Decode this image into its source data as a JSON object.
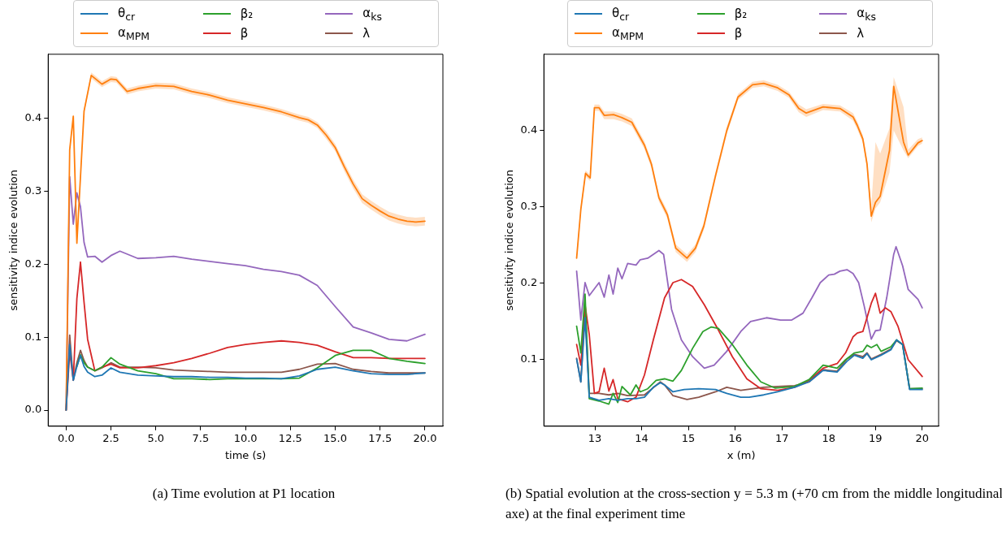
{
  "chart_data": [
    {
      "type": "line",
      "xlabel": "time (s)",
      "ylabel": "sensitivity indice evolution",
      "legend": "top",
      "annotations": [
        "(a) Time evolution at P1 location"
      ],
      "xlim": [
        -1.0,
        21.0
      ],
      "ylim": [
        -0.022,
        0.488
      ],
      "xticks": [
        {
          "value": 0,
          "label": "0.0"
        },
        2.5,
        {
          "value": 5,
          "label": "5.0"
        },
        7.5,
        {
          "value": 10,
          "label": "10.0"
        },
        12.5,
        {
          "value": 15,
          "label": "15.0"
        },
        17.5,
        {
          "value": 20,
          "label": "20.0"
        }
      ],
      "yticks": [
        {
          "value": 0,
          "label": "0.0"
        },
        0.1,
        0.2,
        0.3,
        0.4
      ],
      "x": [
        0,
        0.2,
        0.4,
        0.6,
        0.8,
        1.0,
        1.2,
        1.6,
        2,
        2.5,
        3,
        4,
        5,
        6,
        7,
        8,
        9,
        10,
        11,
        12,
        13,
        14,
        15,
        16,
        17,
        18,
        19,
        20
      ],
      "series": [
        {
          "name": "θ$_{cr}$",
          "color": "#1f77b4",
          "values": [
            0,
            0.09,
            0.041,
            0.06,
            0.075,
            0.06,
            0.052,
            0.046,
            0.048,
            0.058,
            0.052,
            0.048,
            0.047,
            0.046,
            0.046,
            0.045,
            0.045,
            0.044,
            0.044,
            0.043,
            0.047,
            0.056,
            0.059,
            0.054,
            0.05,
            0.049,
            0.049,
            0.051
          ]
        },
        {
          "name": "α$_{MPM}$",
          "color": "#ff7f0e",
          "x": [
            0,
            0.2,
            0.4,
            0.6,
            1.0,
            1.4,
            2,
            2.5,
            2.8,
            3.4,
            4,
            5,
            6,
            7,
            8,
            9,
            10,
            11,
            12,
            13,
            13.5,
            14,
            14.5,
            15,
            15.5,
            16,
            16.5,
            17,
            17.5,
            18,
            18.5,
            19,
            19.5,
            20
          ],
          "values": [
            0,
            0.357,
            0.403,
            0.229,
            0.41,
            0.459,
            0.447,
            0.454,
            0.453,
            0.437,
            0.441,
            0.445,
            0.444,
            0.437,
            0.432,
            0.425,
            0.42,
            0.415,
            0.409,
            0.401,
            0.398,
            0.391,
            0.377,
            0.36,
            0.334,
            0.31,
            0.29,
            0.281,
            0.273,
            0.266,
            0.262,
            0.259,
            0.258,
            0.259
          ],
          "lower": [
            0,
            0.353,
            0.399,
            0.225,
            0.406,
            0.455,
            0.443,
            0.45,
            0.449,
            0.433,
            0.437,
            0.441,
            0.44,
            0.433,
            0.428,
            0.421,
            0.416,
            0.411,
            0.405,
            0.397,
            0.394,
            0.387,
            0.372,
            0.355,
            0.328,
            0.304,
            0.284,
            0.275,
            0.267,
            0.26,
            0.256,
            0.253,
            0.252,
            0.253
          ],
          "upper": [
            0,
            0.361,
            0.407,
            0.233,
            0.414,
            0.463,
            0.451,
            0.458,
            0.457,
            0.441,
            0.445,
            0.449,
            0.448,
            0.441,
            0.436,
            0.429,
            0.424,
            0.419,
            0.413,
            0.405,
            0.402,
            0.395,
            0.382,
            0.365,
            0.34,
            0.316,
            0.296,
            0.287,
            0.279,
            0.272,
            0.268,
            0.265,
            0.264,
            0.265
          ]
        },
        {
          "name": "β₂",
          "color": "#2ca02c",
          "values": [
            null,
            null,
            null,
            0.06,
            0.076,
            0.065,
            0.059,
            0.054,
            0.059,
            0.072,
            0.063,
            0.054,
            0.05,
            0.043,
            0.043,
            0.042,
            0.043,
            0.043,
            0.043,
            0.043,
            0.044,
            0.058,
            0.075,
            0.082,
            0.082,
            0.071,
            0.067,
            0.064
          ]
        },
        {
          "name": "β",
          "color": "#d62728",
          "values": [
            0,
            0.08,
            0.041,
            0.153,
            0.203,
            0.148,
            0.097,
            0.054,
            0.059,
            0.063,
            0.058,
            0.058,
            0.061,
            0.065,
            0.071,
            0.078,
            0.086,
            0.09,
            0.093,
            0.095,
            0.093,
            0.089,
            0.08,
            0.072,
            0.072,
            0.071,
            0.071,
            0.071
          ]
        },
        {
          "name": "α$_{ks}$",
          "color": "#9467bd",
          "values": [
            0,
            0.32,
            0.255,
            0.298,
            0.279,
            0.23,
            0.21,
            0.211,
            0.203,
            0.212,
            0.218,
            0.208,
            0.209,
            0.211,
            0.207,
            0.204,
            0.201,
            0.198,
            0.193,
            0.19,
            0.185,
            0.171,
            0.142,
            0.114,
            0.106,
            0.097,
            0.095,
            0.104
          ]
        },
        {
          "name": "λ",
          "color": "#8c564b",
          "values": [
            0,
            0.103,
            0.041,
            0.065,
            0.082,
            0.068,
            0.059,
            0.054,
            0.058,
            0.065,
            0.059,
            0.059,
            0.058,
            0.055,
            0.054,
            0.053,
            0.052,
            0.052,
            0.052,
            0.052,
            0.056,
            0.063,
            0.064,
            0.056,
            0.053,
            0.051,
            0.051,
            0.051
          ]
        }
      ]
    },
    {
      "type": "line",
      "xlabel": "x (m)",
      "ylabel": "sensitivity indice evolution",
      "legend": "top",
      "annotations": [
        "(b) Spatial evolution at the cross-section y = 5.3 m (+70 cm from the middle longitudinal axe) at the final experiment time"
      ],
      "xlim": [
        11.91,
        20.35
      ],
      "ylim": [
        0.013,
        0.5
      ],
      "xticks": [
        13,
        14,
        15,
        16,
        17,
        18,
        19,
        20
      ],
      "yticks": [
        0.1,
        0.2,
        0.3,
        0.4
      ],
      "series": [
        {
          "name": "θ$_{cr}$",
          "color": "#1f77b4",
          "x": [
            12.61,
            12.7,
            12.79,
            12.88,
            13.09,
            13.3,
            13.49,
            13.7,
            13.88,
            14.06,
            14.25,
            14.4,
            14.49,
            14.67,
            14.91,
            15.22,
            15.58,
            15.82,
            16.12,
            16.3,
            16.61,
            16.91,
            17.27,
            17.58,
            17.88,
            18.18,
            18.39,
            18.55,
            18.73,
            18.82,
            18.91,
            19.12,
            19.33,
            19.45,
            19.58,
            19.73,
            20.0
          ],
          "values": [
            0.101,
            0.071,
            0.155,
            0.051,
            0.047,
            0.049,
            0.047,
            0.049,
            0.049,
            0.051,
            0.064,
            0.07,
            0.067,
            0.058,
            0.061,
            0.062,
            0.061,
            0.056,
            0.051,
            0.051,
            0.054,
            0.058,
            0.064,
            0.071,
            0.086,
            0.084,
            0.098,
            0.106,
            0.102,
            0.108,
            0.1,
            0.106,
            0.113,
            0.126,
            0.12,
            0.061,
            0.061
          ]
        },
        {
          "name": "α$_{MPM}$",
          "color": "#ff7f0e",
          "x": [
            12.61,
            12.7,
            12.8,
            12.9,
            12.99,
            13.09,
            13.2,
            13.4,
            13.58,
            13.79,
            14.06,
            14.21,
            14.37,
            14.55,
            14.73,
            14.97,
            15.15,
            15.33,
            15.58,
            15.82,
            16.06,
            16.37,
            16.61,
            16.91,
            17.15,
            17.36,
            17.52,
            17.88,
            18.24,
            18.52,
            18.61,
            18.73,
            18.82,
            18.91,
            19.0,
            19.1,
            19.3,
            19.39,
            19.6,
            19.7,
            19.91,
            20.0
          ],
          "values": [
            0.233,
            0.297,
            0.344,
            0.338,
            0.43,
            0.43,
            0.42,
            0.421,
            0.417,
            0.411,
            0.381,
            0.356,
            0.312,
            0.29,
            0.246,
            0.233,
            0.246,
            0.275,
            0.341,
            0.4,
            0.444,
            0.46,
            0.462,
            0.456,
            0.447,
            0.429,
            0.423,
            0.431,
            0.429,
            0.418,
            0.407,
            0.389,
            0.356,
            0.288,
            0.306,
            0.314,
            0.374,
            0.458,
            0.385,
            0.368,
            0.384,
            0.387
          ],
          "lower": [
            0.229,
            0.293,
            0.34,
            0.334,
            0.426,
            0.426,
            0.415,
            0.415,
            0.412,
            0.406,
            0.376,
            0.351,
            0.307,
            0.285,
            0.241,
            0.228,
            0.241,
            0.27,
            0.336,
            0.395,
            0.44,
            0.456,
            0.458,
            0.452,
            0.443,
            0.424,
            0.418,
            0.427,
            0.425,
            0.413,
            0.402,
            0.384,
            0.35,
            0.28,
            0.298,
            0.306,
            0.345,
            0.4,
            0.374,
            0.364,
            0.38,
            0.383
          ],
          "upper": [
            0.237,
            0.301,
            0.348,
            0.342,
            0.434,
            0.434,
            0.425,
            0.425,
            0.422,
            0.416,
            0.386,
            0.361,
            0.317,
            0.295,
            0.251,
            0.238,
            0.251,
            0.28,
            0.346,
            0.405,
            0.448,
            0.464,
            0.466,
            0.46,
            0.451,
            0.434,
            0.428,
            0.435,
            0.433,
            0.423,
            0.412,
            0.394,
            0.362,
            0.3,
            0.385,
            0.37,
            0.403,
            0.47,
            0.431,
            0.375,
            0.389,
            0.391
          ]
        },
        {
          "name": "β₂",
          "color": "#2ca02c",
          "x": [
            12.61,
            12.7,
            12.79,
            12.88,
            13.09,
            13.3,
            13.39,
            13.49,
            13.58,
            13.76,
            13.88,
            13.97,
            14.13,
            14.31,
            14.49,
            14.67,
            14.85,
            15.09,
            15.31,
            15.49,
            15.64,
            15.94,
            16.25,
            16.55,
            16.85,
            17.27,
            17.58,
            17.88,
            18.18,
            18.36,
            18.55,
            18.73,
            18.82,
            18.91,
            19.03,
            19.12,
            19.33,
            19.45,
            19.58,
            19.73,
            20.0
          ],
          "values": [
            0.144,
            0.109,
            0.186,
            0.049,
            0.046,
            0.042,
            0.056,
            0.044,
            0.065,
            0.054,
            0.067,
            0.058,
            0.062,
            0.073,
            0.075,
            0.072,
            0.086,
            0.115,
            0.137,
            0.143,
            0.141,
            0.12,
            0.093,
            0.071,
            0.063,
            0.065,
            0.074,
            0.093,
            0.089,
            0.1,
            0.109,
            0.111,
            0.119,
            0.116,
            0.12,
            0.111,
            0.117,
            0.126,
            0.12,
            0.062,
            0.063
          ]
        },
        {
          "name": "β",
          "color": "#d62728",
          "x": [
            12.61,
            12.7,
            12.79,
            12.88,
            12.99,
            13.09,
            13.2,
            13.3,
            13.39,
            13.49,
            13.7,
            13.88,
            14.06,
            14.25,
            14.49,
            14.67,
            14.85,
            15.09,
            15.34,
            15.64,
            15.94,
            16.25,
            16.55,
            16.91,
            17.27,
            17.58,
            17.88,
            18.18,
            18.36,
            18.52,
            18.61,
            18.73,
            18.91,
            19.0,
            19.1,
            19.21,
            19.33,
            19.48,
            19.7,
            20.0
          ],
          "values": [
            0.12,
            0.093,
            0.172,
            0.133,
            0.056,
            0.058,
            0.089,
            0.059,
            0.074,
            0.049,
            0.045,
            0.051,
            0.08,
            0.126,
            0.181,
            0.201,
            0.205,
            0.196,
            0.172,
            0.139,
            0.104,
            0.075,
            0.062,
            0.06,
            0.064,
            0.073,
            0.089,
            0.095,
            0.109,
            0.13,
            0.135,
            0.137,
            0.174,
            0.187,
            0.161,
            0.168,
            0.163,
            0.144,
            0.1,
            0.078
          ]
        },
        {
          "name": "α$_{ks}$",
          "color": "#9467bd",
          "x": [
            12.61,
            12.7,
            12.79,
            12.88,
            13.09,
            13.2,
            13.3,
            13.39,
            13.49,
            13.58,
            13.7,
            13.88,
            13.97,
            14.13,
            14.37,
            14.47,
            14.64,
            14.85,
            15.09,
            15.34,
            15.55,
            15.82,
            16.12,
            16.33,
            16.67,
            16.97,
            17.21,
            17.45,
            17.64,
            17.82,
            18.0,
            18.12,
            18.24,
            18.39,
            18.52,
            18.64,
            18.76,
            18.91,
            19.0,
            19.1,
            19.24,
            19.39,
            19.44,
            19.58,
            19.7,
            19.91,
            20.0
          ],
          "values": [
            0.216,
            0.152,
            0.201,
            0.184,
            0.201,
            0.182,
            0.211,
            0.186,
            0.22,
            0.206,
            0.226,
            0.224,
            0.231,
            0.233,
            0.243,
            0.238,
            0.166,
            0.126,
            0.104,
            0.089,
            0.093,
            0.111,
            0.137,
            0.15,
            0.155,
            0.152,
            0.152,
            0.161,
            0.181,
            0.201,
            0.211,
            0.212,
            0.216,
            0.218,
            0.213,
            0.201,
            0.17,
            0.127,
            0.138,
            0.139,
            0.181,
            0.238,
            0.248,
            0.223,
            0.192,
            0.179,
            0.168
          ]
        },
        {
          "name": "λ",
          "color": "#8c564b",
          "x": [
            12.61,
            12.7,
            12.79,
            12.88,
            13.09,
            13.3,
            13.49,
            13.7,
            14.06,
            14.4,
            14.49,
            14.67,
            14.97,
            15.22,
            15.58,
            15.82,
            16.12,
            16.61,
            16.91,
            17.27,
            17.58,
            17.88,
            18.18,
            18.39,
            18.55,
            18.73,
            18.82,
            18.91,
            19.12,
            19.33,
            19.45,
            19.58,
            19.73,
            20.0
          ],
          "values": [
            0.102,
            0.071,
            0.17,
            0.056,
            0.056,
            0.054,
            0.056,
            0.053,
            0.054,
            0.071,
            0.067,
            0.053,
            0.048,
            0.051,
            0.058,
            0.064,
            0.06,
            0.064,
            0.065,
            0.066,
            0.071,
            0.087,
            0.085,
            0.101,
            0.107,
            0.104,
            0.109,
            0.101,
            0.107,
            0.114,
            0.125,
            0.12,
            0.062,
            0.062
          ]
        }
      ]
    }
  ]
}
